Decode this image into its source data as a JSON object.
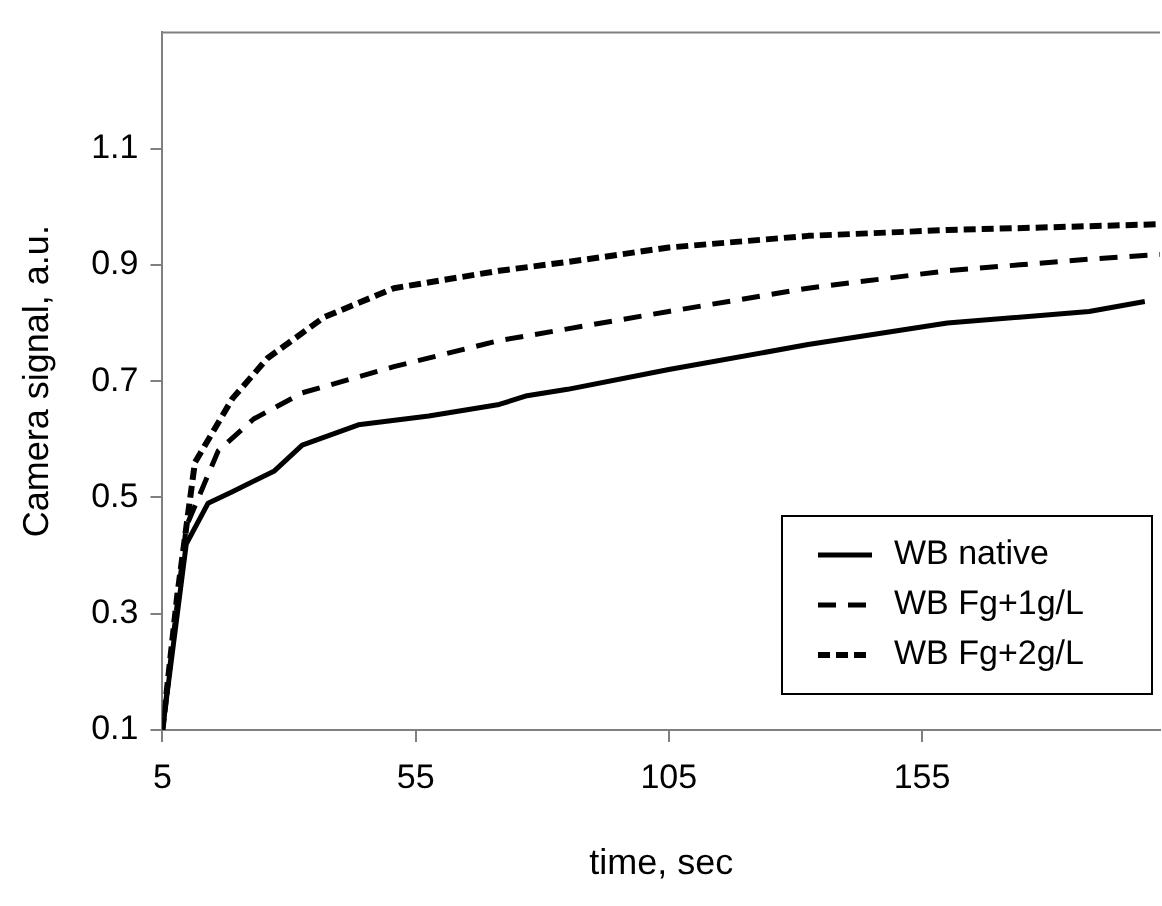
{
  "chart_data": {
    "type": "line",
    "xlabel": "time, sec",
    "ylabel": "Camera signal, a.u.",
    "xlim": [
      5,
      202
    ],
    "xticks": [
      5,
      55,
      105,
      155
    ],
    "ylim": [
      0.1,
      1.3
    ],
    "yticks": [
      0.1,
      0.3,
      0.5,
      0.7,
      0.9,
      1.1
    ],
    "grid": false,
    "legend": "bottom right",
    "marker": "none",
    "series": [
      {
        "name": "WB native",
        "color": "#000000",
        "line_style": "solid",
        "x": [
          5,
          9.7,
          14,
          18.8,
          27,
          32.6,
          43.7,
          57.6,
          71.5,
          77,
          85,
          105,
          132.5,
          160,
          188,
          199
        ],
        "values": [
          0.1,
          0.42,
          0.49,
          0.51,
          0.545,
          0.59,
          0.625,
          0.64,
          0.66,
          0.675,
          0.686,
          0.72,
          0.763,
          0.8,
          0.82,
          0.837
        ]
      },
      {
        "name": "WB Fg+1g/L",
        "color": "#000000",
        "line_style": "dashed",
        "x": [
          5,
          9.7,
          16,
          23,
          32.6,
          50.7,
          71.5,
          85,
          105,
          132.5,
          160,
          188,
          202
        ],
        "values": [
          0.1,
          0.45,
          0.58,
          0.635,
          0.68,
          0.725,
          0.77,
          0.79,
          0.82,
          0.86,
          0.89,
          0.91,
          0.918
        ]
      },
      {
        "name": "WB Fg+2g/L",
        "color": "#000000",
        "line_style": "dashed",
        "x": [
          5,
          7.9,
          11.4,
          18.8,
          25.8,
          36.9,
          50.7,
          71.5,
          85,
          105,
          132.5,
          160,
          202
        ],
        "values": [
          0.1,
          0.33,
          0.56,
          0.67,
          0.74,
          0.81,
          0.86,
          0.89,
          0.905,
          0.93,
          0.95,
          0.96,
          0.97
        ]
      }
    ]
  }
}
